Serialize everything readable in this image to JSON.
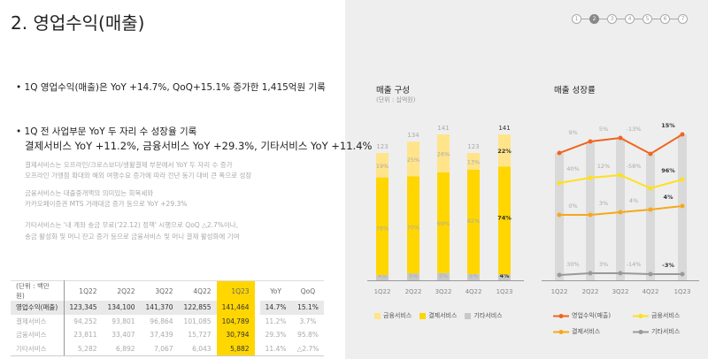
{
  "title": "2. 영업수익(매출)",
  "pager": {
    "pages": [
      "1",
      "2",
      "3",
      "4",
      "5",
      "6",
      "7"
    ],
    "current": 2
  },
  "bullets": {
    "b1": "• 1Q 영업수익(매출)은 YoY +14.7%, QoQ+15.1% 증가한 1,415억원 기록",
    "b2": "• 1Q 전 사업부문 YoY 두 자리 수 성장율 기록",
    "b2_sub": "결제서비스 YoY +11.2%,  금융서비스 YoY +29.3%, 기타서비스 YoY +11.4%",
    "notes": [
      "결제서비스는 오프라인/크로스보더/생활결제 부문에서 YoY 두 자리 수 증가",
      "오프라인 가맹점 확대와 해외 여행수요 증가에 따라 전년 동기 대비 큰 폭으로 성장",
      "금융서비스는 대출중개액의 의미있는 회복세와",
      "카카오페이증권 MTS 거래대금 증가 등으로 YoY +29.3%",
      "기타서비스는 '내 계좌 송금 무료('22.12) 정책' 시행으로 QoQ △2.7%이나,",
      "송금 활성화 및 머니 잔고 증가 등으로 금융서비스 및 머니 결제 활성화에 기여"
    ]
  },
  "table": {
    "header": [
      "(단위 : 백만원)",
      "1Q22",
      "2Q22",
      "3Q22",
      "4Q22",
      "1Q23",
      "YoY",
      "QoQ"
    ],
    "rows": [
      [
        "영업수익(매출)",
        "123,345",
        "134,100",
        "141,370",
        "122,855",
        "141,464",
        "14.7%",
        "15.1%"
      ],
      [
        "결제서비스",
        "94,252",
        "93,801",
        "96,864",
        "101,085",
        "104,789",
        "11.2%",
        "3.7%"
      ],
      [
        "금융서비스",
        "23,811",
        "33,407",
        "37,439",
        "15,727",
        "30,794",
        "29.3%",
        "95.8%"
      ],
      [
        "기타서비스",
        "5,282",
        "6,892",
        "7,067",
        "6,043",
        "5,882",
        "11.4%",
        "△2.7%"
      ]
    ]
  },
  "chart_data": [
    {
      "type": "bar",
      "title": "매출 구성",
      "unit": "(단위 : 십억원)",
      "categories": [
        "1Q22",
        "2Q22",
        "3Q22",
        "4Q22",
        "1Q23"
      ],
      "totals": [
        123,
        134,
        141,
        123,
        141
      ],
      "series": [
        {
          "name": "기타서비스",
          "percent": [
            4,
            5,
            5,
            5,
            4
          ],
          "color": "#c8c8c8"
        },
        {
          "name": "결제서비스",
          "percent": [
            76,
            70,
            69,
            82,
            74
          ],
          "color": "#ffd600"
        },
        {
          "name": "금융서비스",
          "percent": [
            19,
            25,
            26,
            13,
            22
          ],
          "color": "#ffe48a"
        }
      ],
      "legend": [
        "금융서비스",
        "결제서비스",
        "기타서비스"
      ]
    },
    {
      "type": "line",
      "title": "매출 성장률",
      "categories": [
        "1Q22",
        "2Q22",
        "3Q22",
        "4Q22",
        "1Q23"
      ],
      "series": [
        {
          "name": "영업수익(매출)",
          "color": "#f0641e",
          "labels": [
            "9%",
            "5%",
            "-13%",
            "15%"
          ]
        },
        {
          "name": "금융서비스",
          "color": "#ffe01a",
          "labels": [
            "40%",
            "12%",
            "-58%",
            "96%"
          ]
        },
        {
          "name": "결제서비스",
          "color": "#f5a81c",
          "labels": [
            "0%",
            "3%",
            "4%",
            "4%"
          ]
        },
        {
          "name": "기타서비스",
          "color": "#999999",
          "labels": [
            "30%",
            "3%",
            "-14%",
            "-3%"
          ]
        }
      ]
    }
  ]
}
